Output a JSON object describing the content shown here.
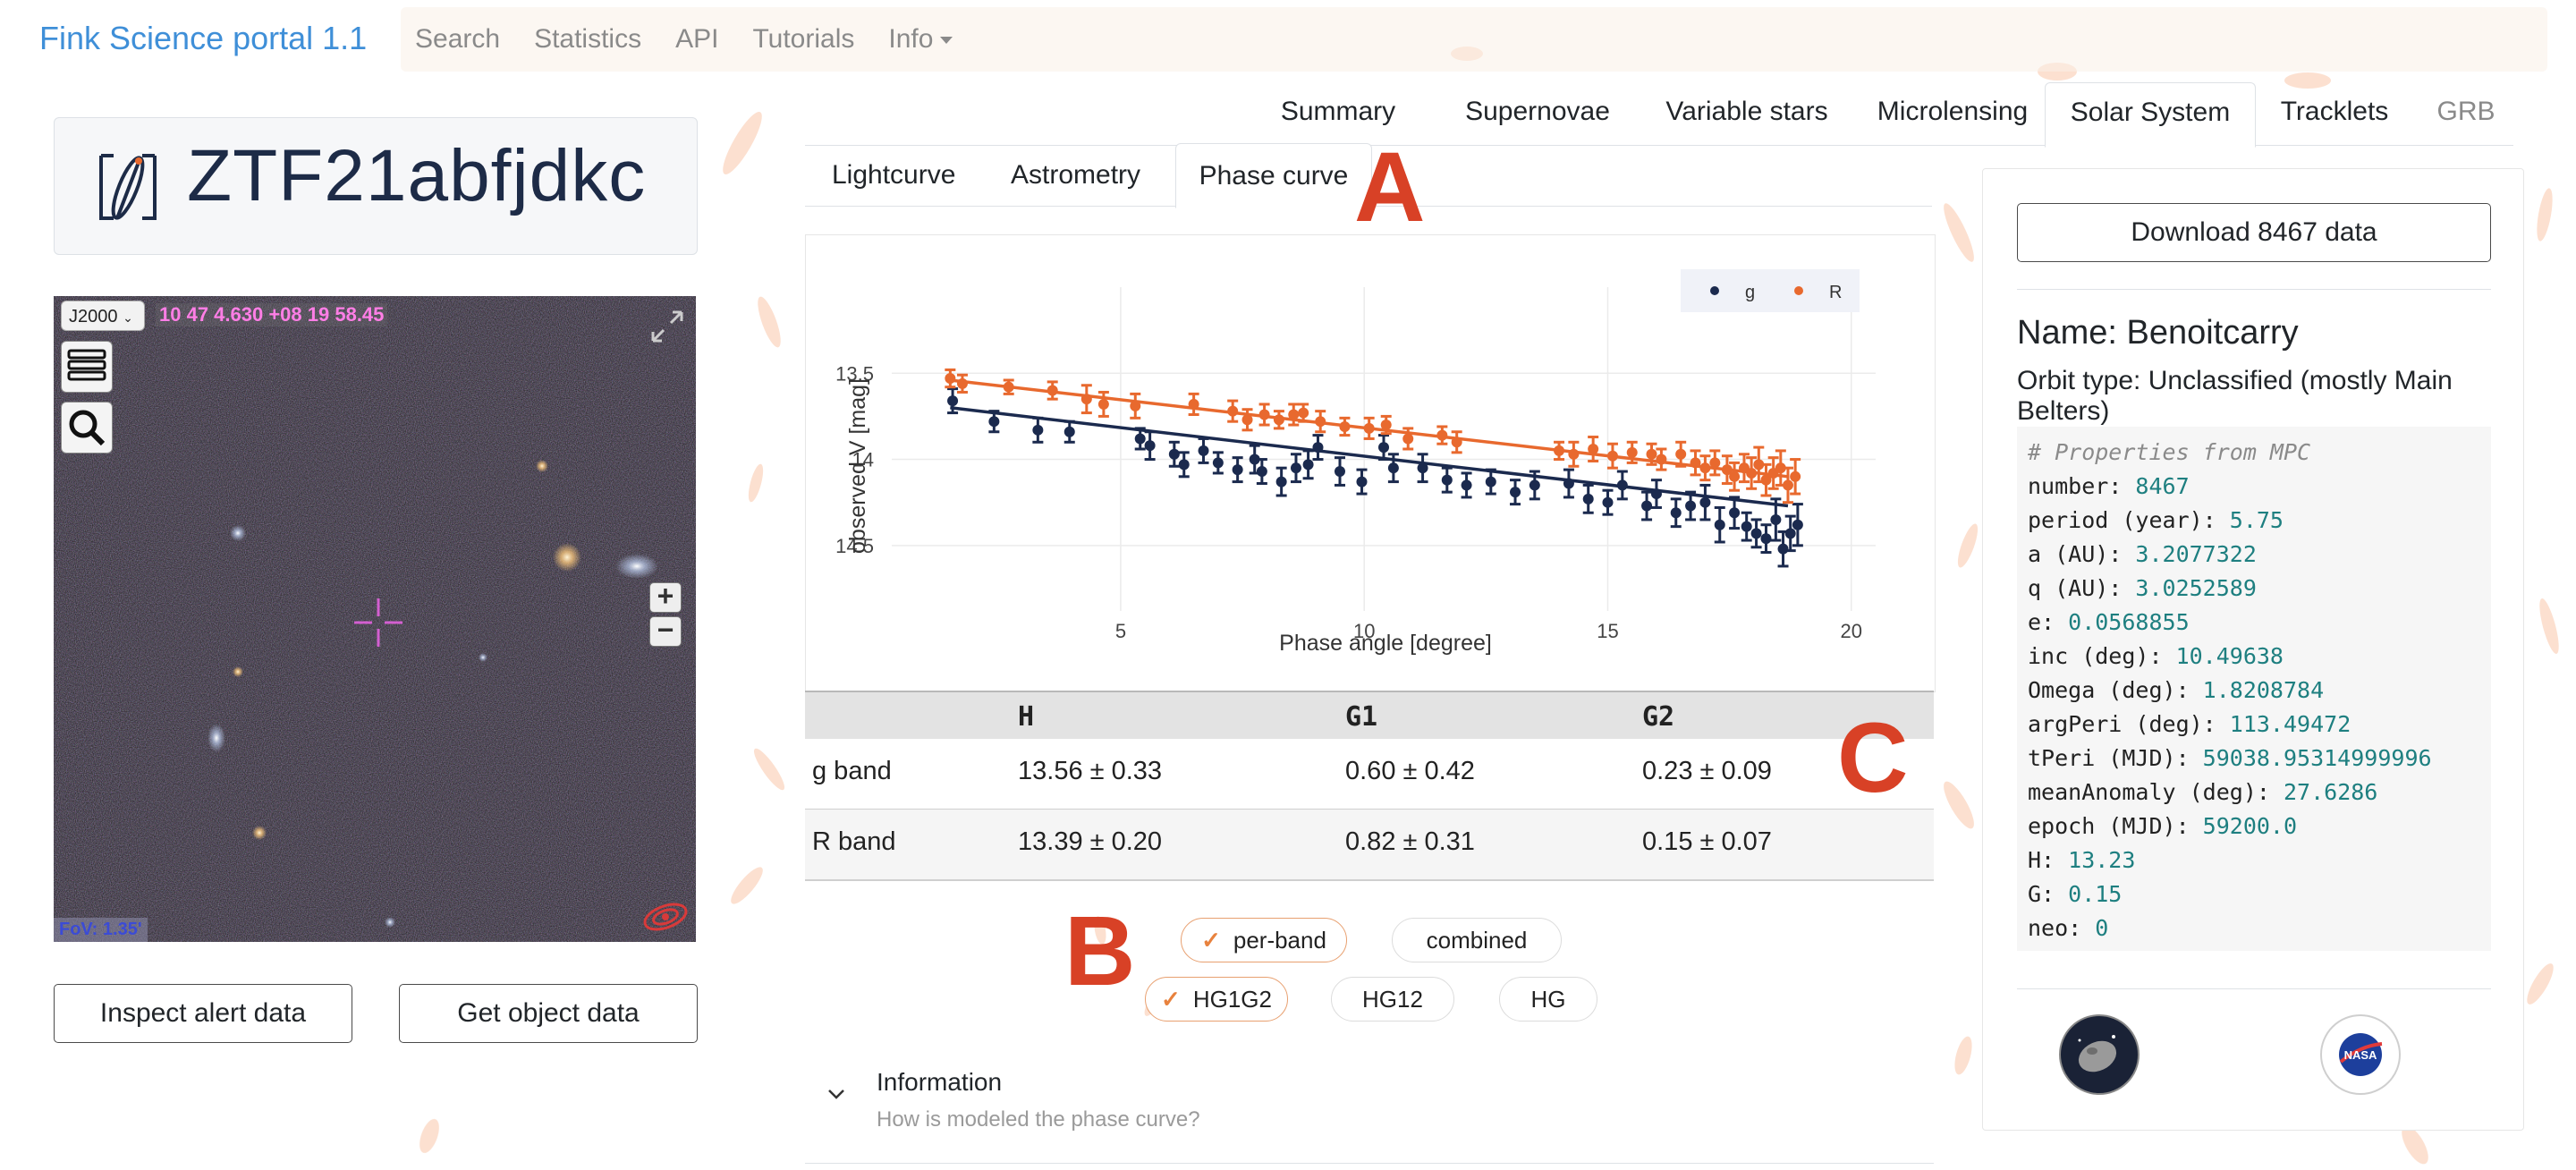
{
  "navbar": {
    "brand": "Fink Science portal 1.1",
    "links": [
      "Search",
      "Statistics",
      "API",
      "Tutorials",
      "Info"
    ]
  },
  "object": {
    "id": "ZTF21abfjdkc"
  },
  "aladin": {
    "frame": "J2000",
    "coordinates": "10 47 4.630 +08 19 58.45",
    "fov": "FoV: 1.35'",
    "zoom_in": "+",
    "zoom_out": "−"
  },
  "left_buttons": {
    "inspect": "Inspect alert data",
    "get_object": "Get object data"
  },
  "tabs": [
    "Summary",
    "Supernovae",
    "Variable stars",
    "Microlensing",
    "Solar System",
    "Tracklets",
    "GRB"
  ],
  "active_tab": "Solar System",
  "subtabs": [
    "Lightcurve",
    "Astrometry",
    "Phase curve"
  ],
  "active_subtab": "Phase curve",
  "annotations": {
    "a": "A",
    "b": "B",
    "c": "C"
  },
  "chart_data": {
    "type": "scatter",
    "xlabel": "Phase angle [degree]",
    "ylabel": "observed V [mag]",
    "xlim": [
      0.3,
      20.5
    ],
    "ylim": [
      14.88,
      13.0
    ],
    "y_reversed": true,
    "xticks": [
      5,
      10,
      15,
      20
    ],
    "yticks": [
      13.5,
      14,
      14.5
    ],
    "ytick_labels": [
      "13.5",
      "14",
      "14.5"
    ],
    "grid": true,
    "legend_position": "top-right",
    "series": [
      {
        "name": "g",
        "color": "#1b2a4e",
        "fit": [
          [
            1.5,
            13.7
          ],
          [
            18.7,
            14.27
          ]
        ],
        "points": [
          [
            1.55,
            13.66,
            0.07
          ],
          [
            2.4,
            13.78,
            0.06
          ],
          [
            3.3,
            13.83,
            0.07
          ],
          [
            3.95,
            13.84,
            0.06
          ],
          [
            5.4,
            13.88,
            0.06
          ],
          [
            5.6,
            13.92,
            0.08
          ],
          [
            6.1,
            13.97,
            0.07
          ],
          [
            6.3,
            14.03,
            0.07
          ],
          [
            6.7,
            13.95,
            0.07
          ],
          [
            7.0,
            14.02,
            0.06
          ],
          [
            7.4,
            14.06,
            0.07
          ],
          [
            7.75,
            14.0,
            0.08
          ],
          [
            7.9,
            14.07,
            0.07
          ],
          [
            8.3,
            14.13,
            0.08
          ],
          [
            8.6,
            14.05,
            0.08
          ],
          [
            8.85,
            14.03,
            0.08
          ],
          [
            9.05,
            13.93,
            0.07
          ],
          [
            9.5,
            14.07,
            0.08
          ],
          [
            9.95,
            14.13,
            0.07
          ],
          [
            10.4,
            13.93,
            0.07
          ],
          [
            10.6,
            14.05,
            0.08
          ],
          [
            11.2,
            14.05,
            0.08
          ],
          [
            11.7,
            14.12,
            0.07
          ],
          [
            12.1,
            14.15,
            0.07
          ],
          [
            12.6,
            14.13,
            0.07
          ],
          [
            13.1,
            14.19,
            0.07
          ],
          [
            13.5,
            14.15,
            0.08
          ],
          [
            14.2,
            14.14,
            0.08
          ],
          [
            14.6,
            14.23,
            0.08
          ],
          [
            15.0,
            14.25,
            0.07
          ],
          [
            15.3,
            14.15,
            0.08
          ],
          [
            15.8,
            14.27,
            0.08
          ],
          [
            16.0,
            14.2,
            0.08
          ],
          [
            16.4,
            14.31,
            0.08
          ],
          [
            16.7,
            14.27,
            0.08
          ],
          [
            17.0,
            14.25,
            0.1
          ],
          [
            17.3,
            14.38,
            0.1
          ],
          [
            17.6,
            14.31,
            0.09
          ],
          [
            17.85,
            14.39,
            0.08
          ],
          [
            18.05,
            14.43,
            0.08
          ],
          [
            18.25,
            14.46,
            0.08
          ],
          [
            18.45,
            14.35,
            0.12
          ],
          [
            18.6,
            14.52,
            0.1
          ],
          [
            18.75,
            14.43,
            0.1
          ],
          [
            18.9,
            14.38,
            0.12
          ]
        ]
      },
      {
        "name": "R",
        "color": "#e8692e",
        "fit": [
          [
            1.5,
            13.54
          ],
          [
            18.7,
            14.1
          ]
        ],
        "points": [
          [
            1.5,
            13.53,
            0.05
          ],
          [
            1.75,
            13.56,
            0.05
          ],
          [
            2.7,
            13.58,
            0.04
          ],
          [
            3.6,
            13.6,
            0.05
          ],
          [
            4.3,
            13.65,
            0.08
          ],
          [
            4.65,
            13.68,
            0.07
          ],
          [
            5.3,
            13.69,
            0.07
          ],
          [
            6.5,
            13.68,
            0.06
          ],
          [
            7.3,
            13.72,
            0.06
          ],
          [
            7.6,
            13.77,
            0.06
          ],
          [
            7.95,
            13.74,
            0.06
          ],
          [
            8.25,
            13.77,
            0.05
          ],
          [
            8.55,
            13.74,
            0.06
          ],
          [
            8.75,
            13.73,
            0.05
          ],
          [
            9.1,
            13.78,
            0.06
          ],
          [
            9.6,
            13.81,
            0.05
          ],
          [
            10.1,
            13.82,
            0.06
          ],
          [
            10.45,
            13.8,
            0.05
          ],
          [
            10.9,
            13.88,
            0.06
          ],
          [
            11.6,
            13.86,
            0.05
          ],
          [
            11.9,
            13.9,
            0.06
          ],
          [
            14.0,
            13.95,
            0.05
          ],
          [
            14.3,
            13.97,
            0.07
          ],
          [
            14.7,
            13.94,
            0.07
          ],
          [
            15.1,
            13.98,
            0.07
          ],
          [
            15.5,
            13.96,
            0.06
          ],
          [
            15.9,
            13.97,
            0.06
          ],
          [
            16.1,
            14.0,
            0.06
          ],
          [
            16.5,
            13.97,
            0.07
          ],
          [
            16.8,
            14.02,
            0.07
          ],
          [
            17.0,
            14.05,
            0.07
          ],
          [
            17.2,
            14.02,
            0.07
          ],
          [
            17.45,
            14.06,
            0.08
          ],
          [
            17.6,
            14.1,
            0.08
          ],
          [
            17.8,
            14.05,
            0.08
          ],
          [
            17.95,
            14.08,
            0.09
          ],
          [
            18.1,
            14.03,
            0.1
          ],
          [
            18.25,
            14.12,
            0.09
          ],
          [
            18.4,
            14.08,
            0.09
          ],
          [
            18.55,
            14.05,
            0.1
          ],
          [
            18.7,
            14.15,
            0.1
          ],
          [
            18.85,
            14.1,
            0.1
          ]
        ]
      }
    ]
  },
  "fit_table": {
    "columns": [
      "H",
      "G1",
      "G2"
    ],
    "rows": [
      {
        "band": "g band",
        "H": "13.56 ± 0.33",
        "G1": "0.60 ± 0.42",
        "G2": "0.23 ± 0.09"
      },
      {
        "band": "R band",
        "H": "13.39 ± 0.20",
        "G1": "0.82 ± 0.31",
        "G2": "0.15 ± 0.07"
      }
    ]
  },
  "options": {
    "bands": [
      {
        "label": "per-band",
        "checked": true
      },
      {
        "label": "combined",
        "checked": false
      }
    ],
    "models": [
      {
        "label": "HG1G2",
        "checked": true
      },
      {
        "label": "HG12",
        "checked": false
      },
      {
        "label": "HG",
        "checked": false
      }
    ],
    "check_glyph": "✓"
  },
  "info": {
    "title": "Information",
    "subtitle": "How is modeled the phase curve?"
  },
  "right_panel": {
    "download": "Download 8467 data",
    "name": "Name: Benoitcarry",
    "orbit": "Orbit type: Unclassified (mostly Main Belters)",
    "props_header": "# Properties from MPC",
    "props": [
      {
        "k": "number: ",
        "v": "8467"
      },
      {
        "k": "period (year): ",
        "v": "5.75"
      },
      {
        "k": "a (AU): ",
        "v": "3.2077322"
      },
      {
        "k": "q (AU): ",
        "v": "3.0252589"
      },
      {
        "k": "e: ",
        "v": "0.0568855"
      },
      {
        "k": "inc (deg): ",
        "v": "10.49638"
      },
      {
        "k": "Omega (deg): ",
        "v": "1.8208784"
      },
      {
        "k": "argPeri (deg): ",
        "v": "113.49472"
      },
      {
        "k": "tPeri (MJD): ",
        "v": "59038.95314999996"
      },
      {
        "k": "meanAnomaly (deg): ",
        "v": "27.6286"
      },
      {
        "k": "epoch (MJD): ",
        "v": "59200.0"
      },
      {
        "k": "H: ",
        "v": "13.23"
      },
      {
        "k": "G: ",
        "v": "0.15"
      },
      {
        "k": "neo: ",
        "v": "0"
      }
    ],
    "nasa_text": "NASA"
  }
}
